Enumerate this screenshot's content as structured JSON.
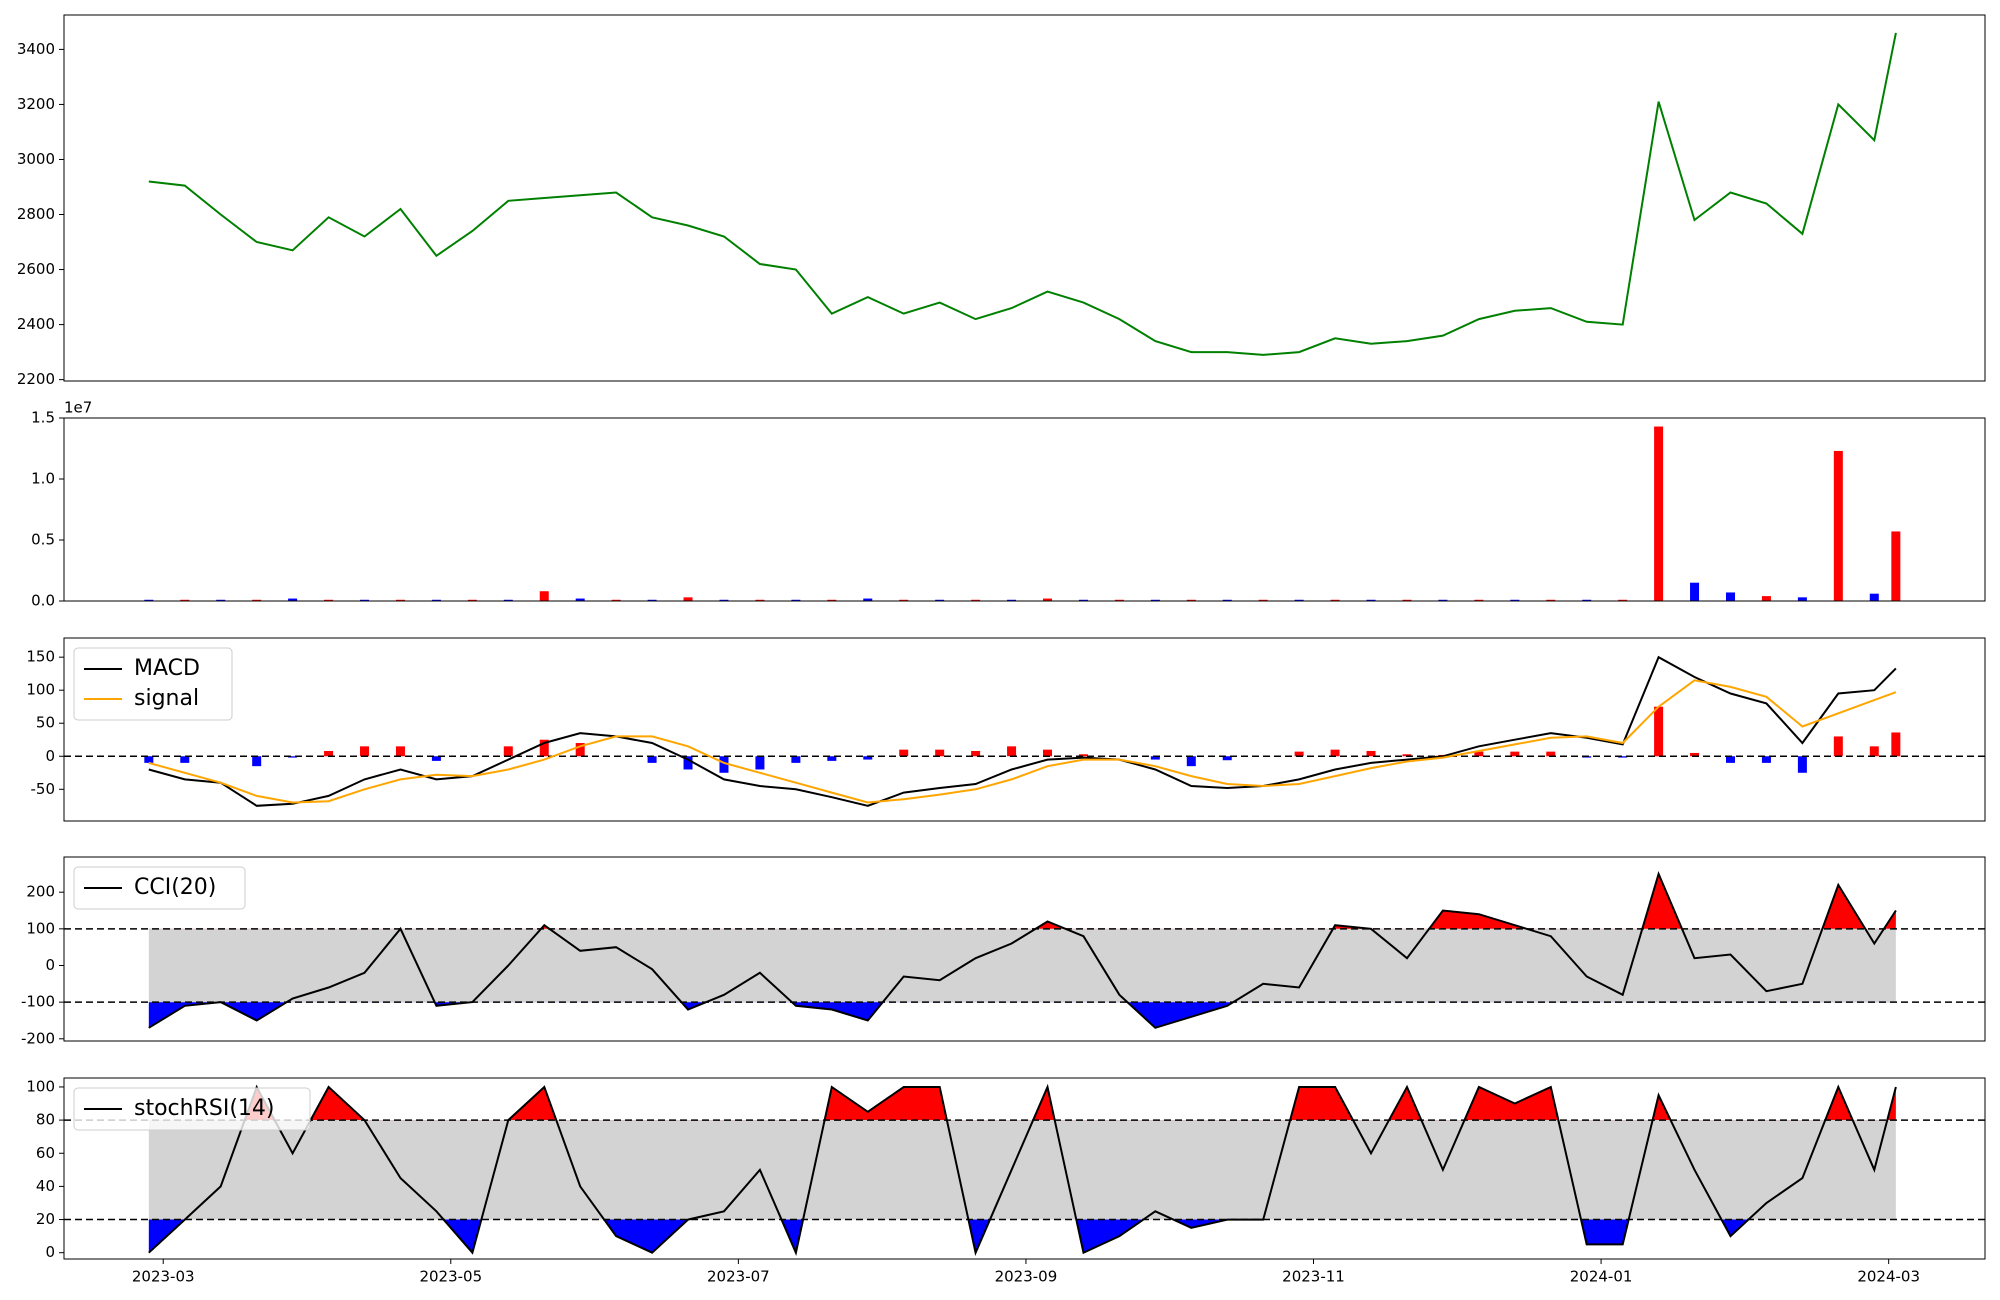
{
  "chart_data": [
    {
      "type": "line",
      "x": [
        1.9,
        2.15,
        2.4,
        2.65,
        2.9,
        3.15,
        3.4,
        3.65,
        3.9,
        4.15,
        4.4,
        4.65,
        4.9,
        5.15,
        5.4,
        5.65,
        5.9,
        6.15,
        6.4,
        6.65,
        6.9,
        7.15,
        7.4,
        7.65,
        7.9,
        8.15,
        8.4,
        8.65,
        8.9,
        9.15,
        9.4,
        9.65,
        9.9,
        10.15,
        10.4,
        10.65,
        10.9,
        11.15,
        11.4,
        11.65,
        11.9,
        12.15,
        12.4,
        12.65,
        12.9,
        13.15,
        13.4,
        13.65,
        13.9,
        14.05
      ],
      "values": [
        2920,
        2905,
        2800,
        2700,
        2670,
        2790,
        2720,
        2820,
        2650,
        2740,
        2850,
        2860,
        2870,
        2880,
        2790,
        2760,
        2720,
        2620,
        2600,
        2440,
        2500,
        2440,
        2480,
        2420,
        2460,
        2520,
        2480,
        2420,
        2340,
        2300,
        2300,
        2290,
        2300,
        2350,
        2330,
        2340,
        2360,
        2420,
        2450,
        2460,
        2410,
        2400,
        3210,
        2780,
        2880,
        2840,
        2730,
        3200,
        3070,
        3460
      ],
      "color": "green",
      "xlim": [
        1.31,
        14.67
      ],
      "ylim": [
        2195,
        3525
      ],
      "yticks": [
        2200,
        2400,
        2600,
        2800,
        3000,
        3200,
        3400
      ]
    },
    {
      "type": "bar",
      "x": [
        1.9,
        2.15,
        2.4,
        2.65,
        2.9,
        3.15,
        3.4,
        3.65,
        3.9,
        4.15,
        4.4,
        4.65,
        4.9,
        5.15,
        5.4,
        5.65,
        5.9,
        6.15,
        6.4,
        6.65,
        6.9,
        7.15,
        7.4,
        7.65,
        7.9,
        8.15,
        8.4,
        8.65,
        8.9,
        9.15,
        9.4,
        9.65,
        9.9,
        10.15,
        10.4,
        10.65,
        10.9,
        11.15,
        11.4,
        11.65,
        11.9,
        12.15,
        12.4,
        12.65,
        12.9,
        13.15,
        13.4,
        13.65,
        13.9,
        14.05
      ],
      "values": [
        0.01,
        0.01,
        0.01,
        0.01,
        0.02,
        0.01,
        0.01,
        0.01,
        0.01,
        0.01,
        0.01,
        0.08,
        0.02,
        0.01,
        0.01,
        0.03,
        0.01,
        0.01,
        0.01,
        0.01,
        0.02,
        0.01,
        0.01,
        0.01,
        0.01,
        0.02,
        0.01,
        0.01,
        0.01,
        0.01,
        0.01,
        0.01,
        0.01,
        0.01,
        0.01,
        0.01,
        0.01,
        0.01,
        0.01,
        0.01,
        0.01,
        0.01,
        1.43,
        0.15,
        0.07,
        0.04,
        0.03,
        1.23,
        0.06,
        0.57
      ],
      "colors": [
        "blue",
        "red",
        "blue",
        "red",
        "blue",
        "red",
        "blue",
        "red",
        "blue",
        "red",
        "blue",
        "red",
        "blue",
        "red",
        "blue",
        "red",
        "blue",
        "red",
        "blue",
        "red",
        "blue",
        "red",
        "blue",
        "red",
        "blue",
        "red",
        "blue",
        "red",
        "blue",
        "red",
        "blue",
        "red",
        "blue",
        "red",
        "blue",
        "red",
        "blue",
        "red",
        "blue",
        "red",
        "blue",
        "red",
        "red",
        "blue",
        "blue",
        "red",
        "blue",
        "red",
        "blue",
        "red"
      ],
      "offset_label": "1e7",
      "xlim": [
        1.31,
        14.67
      ],
      "ylim": [
        0,
        1.5
      ],
      "yticks": [
        {
          "value": 0,
          "label": "0.0"
        },
        0.5,
        {
          "value": 1,
          "label": "1.0"
        },
        1.5
      ]
    },
    {
      "type": "macd",
      "x": [
        1.9,
        2.15,
        2.4,
        2.65,
        2.9,
        3.15,
        3.4,
        3.65,
        3.9,
        4.15,
        4.4,
        4.65,
        4.9,
        5.15,
        5.4,
        5.65,
        5.9,
        6.15,
        6.4,
        6.65,
        6.9,
        7.15,
        7.4,
        7.65,
        7.9,
        8.15,
        8.4,
        8.65,
        8.9,
        9.15,
        9.4,
        9.65,
        9.9,
        10.15,
        10.4,
        10.65,
        10.9,
        11.15,
        11.4,
        11.65,
        11.9,
        12.15,
        12.4,
        12.65,
        12.9,
        13.15,
        13.4,
        13.65,
        13.9,
        14.05
      ],
      "series": [
        {
          "name": "MACD",
          "color": "black",
          "values": [
            -20,
            -35,
            -40,
            -75,
            -72,
            -60,
            -35,
            -20,
            -35,
            -30,
            -5,
            20,
            35,
            30,
            20,
            -5,
            -35,
            -45,
            -50,
            -62,
            -75,
            -55,
            -48,
            -42,
            -20,
            -5,
            -2,
            -5,
            -20,
            -45,
            -48,
            -45,
            -35,
            -20,
            -10,
            -5,
            0,
            15,
            25,
            35,
            28,
            18,
            150,
            120,
            95,
            80,
            20,
            95,
            100,
            133
          ]
        },
        {
          "name": "signal",
          "color": "orange",
          "values": [
            -10,
            -25,
            -40,
            -60,
            -70,
            -68,
            -50,
            -35,
            -28,
            -30,
            -20,
            -5,
            15,
            30,
            30,
            15,
            -10,
            -25,
            -40,
            -55,
            -70,
            -65,
            -58,
            -50,
            -35,
            -15,
            -5,
            -5,
            -15,
            -30,
            -42,
            -45,
            -42,
            -30,
            -18,
            -8,
            -2,
            8,
            18,
            28,
            30,
            20,
            75,
            115,
            105,
            90,
            45,
            65,
            85,
            97
          ]
        }
      ],
      "histogram": {
        "values": [
          -10,
          -10,
          0,
          -15,
          -2,
          8,
          15,
          15,
          -7,
          0,
          15,
          25,
          20,
          0,
          -10,
          -20,
          -25,
          -20,
          -10,
          -7,
          -5,
          10,
          10,
          8,
          15,
          10,
          3,
          0,
          -5,
          -15,
          -6,
          0,
          7,
          10,
          8,
          3,
          2,
          7,
          7,
          7,
          -2,
          -2,
          75,
          5,
          -10,
          -10,
          -25,
          30,
          15,
          36
        ],
        "positive_color": "red",
        "negative_color": "blue"
      },
      "zero_line": 0,
      "legend": "upper left",
      "xlim": [
        1.31,
        14.67
      ],
      "ylim": [
        -98,
        179
      ],
      "yticks": [
        -50,
        0,
        50,
        100,
        150
      ]
    },
    {
      "type": "oscillator",
      "x": [
        1.9,
        2.15,
        2.4,
        2.65,
        2.9,
        3.15,
        3.4,
        3.65,
        3.9,
        4.15,
        4.4,
        4.65,
        4.9,
        5.15,
        5.4,
        5.65,
        5.9,
        6.15,
        6.4,
        6.65,
        6.9,
        7.15,
        7.4,
        7.65,
        7.9,
        8.15,
        8.4,
        8.65,
        8.9,
        9.15,
        9.4,
        9.65,
        9.9,
        10.15,
        10.4,
        10.65,
        10.9,
        11.15,
        11.4,
        11.65,
        11.9,
        12.15,
        12.4,
        12.65,
        12.9,
        13.15,
        13.4,
        13.65,
        13.9,
        14.05
      ],
      "series": [
        {
          "name": "CCI(20)",
          "color": "black",
          "values": [
            -170,
            -110,
            -100,
            -150,
            -90,
            -60,
            -20,
            100,
            -110,
            -100,
            0,
            110,
            40,
            50,
            -10,
            -120,
            -80,
            -20,
            -110,
            -120,
            -150,
            -30,
            -40,
            20,
            60,
            120,
            80,
            -80,
            -170,
            -140,
            -110,
            -50,
            -60,
            110,
            100,
            20,
            150,
            140,
            110,
            80,
            -30,
            -80,
            250,
            20,
            30,
            -70,
            -50,
            220,
            60,
            150
          ]
        }
      ],
      "upper": 100,
      "lower": -100,
      "band_color": "lightgray",
      "upper_color": "red",
      "lower_color": "blue",
      "legend": "upper left",
      "xlim": [
        1.31,
        14.67
      ],
      "ylim": [
        -206,
        296
      ],
      "yticks": [
        -200,
        -100,
        0,
        100,
        200
      ]
    },
    {
      "type": "oscillator",
      "x": [
        1.9,
        2.15,
        2.4,
        2.65,
        2.9,
        3.15,
        3.4,
        3.65,
        3.9,
        4.15,
        4.4,
        4.65,
        4.9,
        5.15,
        5.4,
        5.65,
        5.9,
        6.15,
        6.4,
        6.65,
        6.9,
        7.15,
        7.4,
        7.65,
        7.9,
        8.15,
        8.4,
        8.65,
        8.9,
        9.15,
        9.4,
        9.65,
        9.9,
        10.15,
        10.4,
        10.65,
        10.9,
        11.15,
        11.4,
        11.65,
        11.9,
        12.15,
        12.4,
        12.65,
        12.9,
        13.15,
        13.4,
        13.65,
        13.9,
        14.05
      ],
      "series": [
        {
          "name": "stochRSI(14)",
          "color": "black",
          "values": [
            0,
            20,
            40,
            100,
            60,
            100,
            80,
            45,
            25,
            0,
            80,
            100,
            40,
            10,
            0,
            20,
            25,
            50,
            0,
            100,
            85,
            100,
            100,
            0,
            50,
            100,
            0,
            10,
            25,
            15,
            20,
            20,
            100,
            100,
            60,
            100,
            50,
            100,
            90,
            100,
            5,
            5,
            95,
            50,
            10,
            30,
            45,
            100,
            50,
            100
          ]
        }
      ],
      "upper": 80,
      "lower": 20,
      "band_color": "lightgray",
      "upper_color": "red",
      "lower_color": "blue",
      "legend": "upper left",
      "xlim": [
        1.31,
        14.67
      ],
      "ylim": [
        -3.8,
        105.4
      ],
      "yticks": [
        0,
        20,
        40,
        60,
        80,
        100
      ],
      "xticks": [
        {
          "value": 2,
          "label": "2023-03"
        },
        {
          "value": 4,
          "label": "2023-05"
        },
        {
          "value": 6,
          "label": "2023-07"
        },
        {
          "value": 8,
          "label": "2023-09"
        },
        {
          "value": 10,
          "label": "2023-11"
        },
        {
          "value": 12,
          "label": "2024-01"
        },
        {
          "value": 14,
          "label": "2024-03"
        }
      ]
    }
  ]
}
